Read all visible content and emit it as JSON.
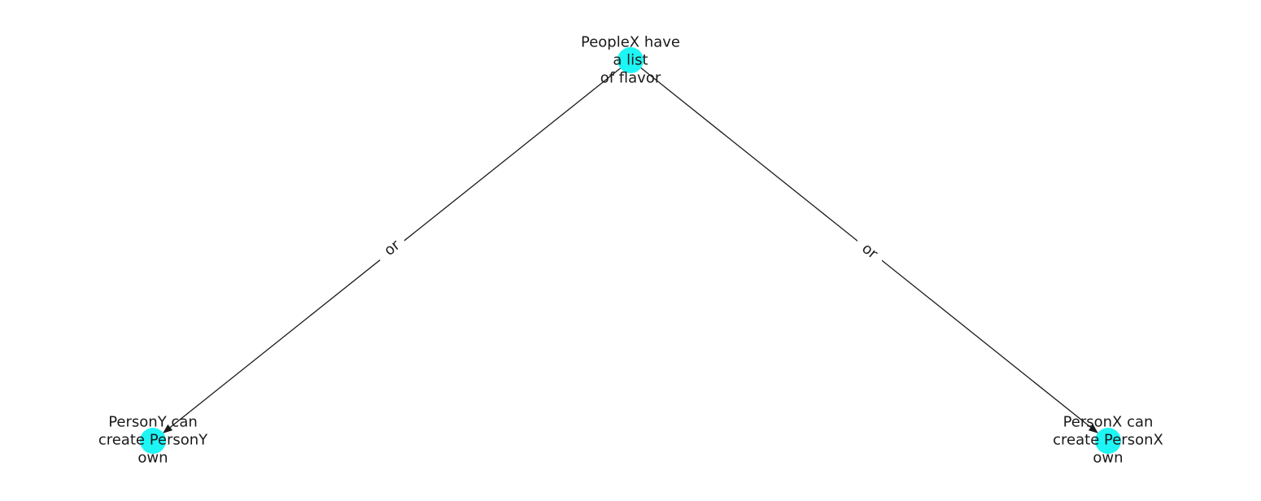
{
  "diagram": {
    "node_color": "#1ef5f5",
    "edge_color": "#1a1a1a",
    "nodes": [
      {
        "id": "root",
        "lines": [
          "PeopleX have",
          "a list",
          "of flavor"
        ]
      },
      {
        "id": "left",
        "lines": [
          "PersonY can",
          "create PersonY",
          "own"
        ]
      },
      {
        "id": "right",
        "lines": [
          "PersonX can",
          "create PersonX",
          "own"
        ]
      }
    ],
    "edges": [
      {
        "from": "root",
        "to": "left",
        "label": "or"
      },
      {
        "from": "root",
        "to": "right",
        "label": "or"
      }
    ]
  }
}
